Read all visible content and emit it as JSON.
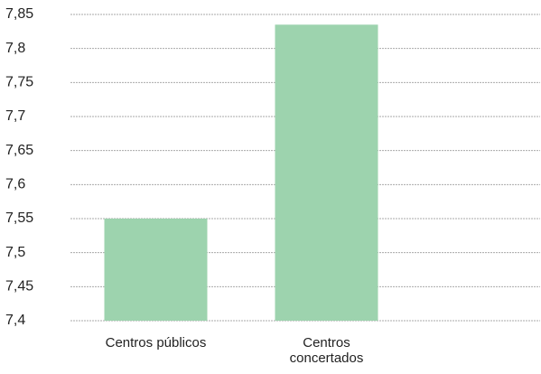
{
  "chart_data": {
    "type": "bar",
    "categories": [
      "Centros públicos",
      "Centros concertados"
    ],
    "values": [
      7.55,
      7.835
    ],
    "color": "#9dd3ae",
    "ylim": [
      7.4,
      7.85
    ],
    "yticks": [
      {
        "value": 7.4,
        "label": "7,4"
      },
      {
        "value": 7.45,
        "label": "7,45"
      },
      {
        "value": 7.5,
        "label": "7,5"
      },
      {
        "value": 7.55,
        "label": "7,55"
      },
      {
        "value": 7.6,
        "label": "7,6"
      },
      {
        "value": 7.65,
        "label": "7,65"
      },
      {
        "value": 7.7,
        "label": "7,7"
      },
      {
        "value": 7.75,
        "label": "7,75"
      },
      {
        "value": 7.8,
        "label": "7,8"
      },
      {
        "value": 7.85,
        "label": "7,85"
      }
    ],
    "grid": true
  }
}
